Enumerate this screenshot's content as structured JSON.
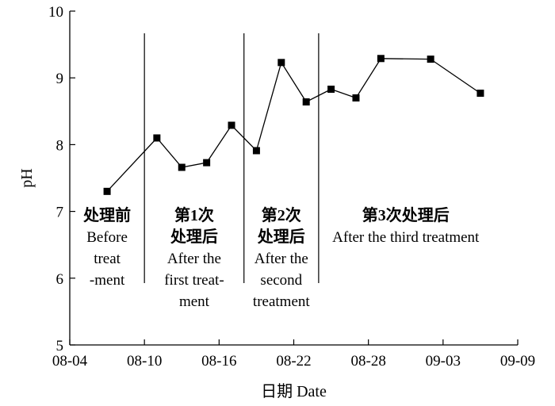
{
  "chart_data": {
    "type": "line",
    "title": "",
    "xlabel": "日期 Date",
    "ylabel": "pH",
    "xlim": [
      "08-04",
      "09-09"
    ],
    "ylim": [
      5,
      10
    ],
    "x_ticks": [
      "08-04",
      "08-10",
      "08-16",
      "08-22",
      "08-28",
      "09-03",
      "09-09"
    ],
    "y_ticks": [
      "5",
      "6",
      "7",
      "8",
      "9",
      "10"
    ],
    "grid": false,
    "legend": "none",
    "series": [
      {
        "color": "#000000",
        "marker": "square",
        "points": [
          {
            "x": "08-07",
            "y": 7.3
          },
          {
            "x": "08-11",
            "y": 8.1
          },
          {
            "x": "08-13",
            "y": 7.66
          },
          {
            "x": "08-15",
            "y": 7.73
          },
          {
            "x": "08-17",
            "y": 8.29
          },
          {
            "x": "08-19",
            "y": 7.91
          },
          {
            "x": "08-21",
            "y": 9.23
          },
          {
            "x": "08-23",
            "y": 8.64
          },
          {
            "x": "08-25",
            "y": 8.83
          },
          {
            "x": "08-27",
            "y": 8.7
          },
          {
            "x": "08-29",
            "y": 9.29
          },
          {
            "x": "09-02",
            "y": 9.28
          },
          {
            "x": "09-06",
            "y": 8.77
          }
        ]
      }
    ],
    "phase_boundaries": [
      "08-10",
      "08-18",
      "08-24"
    ],
    "annotations": [
      {
        "x": "08-07",
        "cn": [
          "处理前"
        ],
        "en": [
          "Before",
          "treat",
          "-ment"
        ]
      },
      {
        "x": "08-14",
        "cn": [
          "第1次",
          "处理后"
        ],
        "en": [
          "After the",
          "first treat-",
          "ment"
        ]
      },
      {
        "x": "08-21",
        "cn": [
          "第2次",
          "处理后"
        ],
        "en": [
          "After the",
          "second",
          "treatment"
        ]
      },
      {
        "x": "08-31",
        "cn": [
          "第3次处理后"
        ],
        "en": [
          "After the third treatment"
        ]
      }
    ]
  }
}
